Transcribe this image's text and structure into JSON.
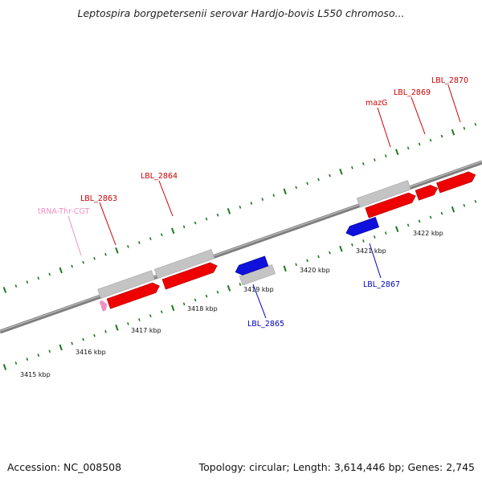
{
  "title": "Leptospira borgpetersenii serovar Hardjo-bovis L550 chromoso...",
  "footer": {
    "accession": "Accession: NC_008508",
    "summary": "Topology: circular; Length: 3,614,446 bp; Genes: 2,745"
  },
  "colors": {
    "forward_gene": "#ee0000",
    "reverse_gene": "#1010dd",
    "cds_bar": "#bdbdbd",
    "trna": "#f090c0",
    "tick": "#1a7a1a",
    "backbone": "#8a8a8a",
    "forward_label": "#cc0000",
    "reverse_label": "#0000bb",
    "trna_label": "#f090c0"
  },
  "scale": {
    "ticks": [
      "3415 kbp",
      "3416 kbp",
      "3417 kbp",
      "3418 kbp",
      "3419 kbp",
      "3420 kbp",
      "3421 kbp",
      "3422 kbp"
    ]
  },
  "features": [
    {
      "name": "tRNA-Thr-CGT",
      "kind": "trna",
      "strand": "forward"
    },
    {
      "name": "LBL_2863",
      "kind": "gene",
      "strand": "forward"
    },
    {
      "name": "LBL_2864",
      "kind": "gene",
      "strand": "forward"
    },
    {
      "name": "LBL_2865",
      "kind": "gene",
      "strand": "reverse"
    },
    {
      "name": "LBL_2867",
      "kind": "gene",
      "strand": "reverse"
    },
    {
      "name": "mazG",
      "kind": "gene",
      "strand": "forward"
    },
    {
      "name": "LBL_2869",
      "kind": "gene",
      "strand": "forward"
    },
    {
      "name": "LBL_2870",
      "kind": "gene",
      "strand": "forward"
    }
  ]
}
